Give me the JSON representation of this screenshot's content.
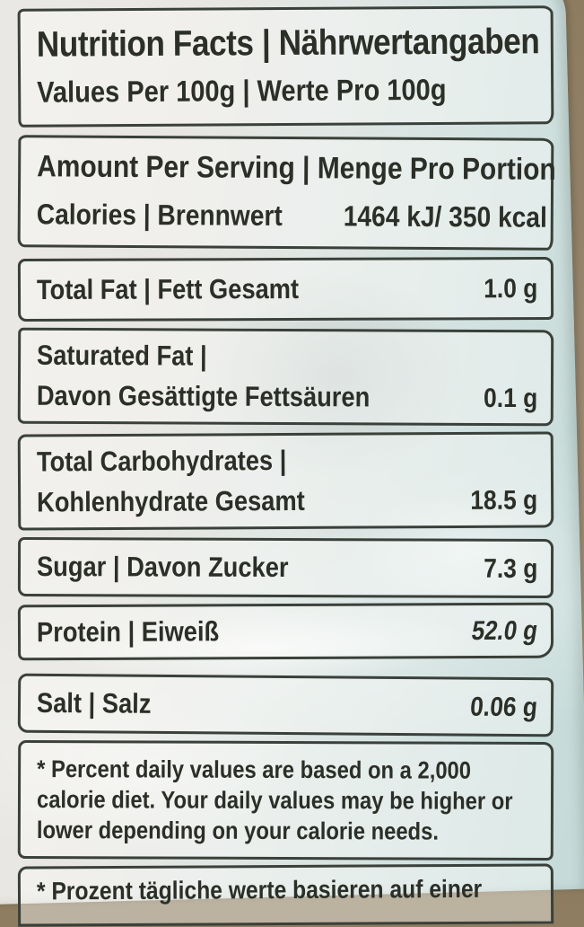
{
  "label": {
    "title": "Nutrition Facts | Nährwertangaben",
    "subtitle": "Values Per 100g | Werte Pro 100g",
    "serving_heading": "Amount Per Serving | Menge Pro Portion",
    "calories": {
      "label": "Calories | Brennwert",
      "value": "1464 kJ/ 350 kcal"
    },
    "rows": [
      {
        "line1": "Total Fat | Fett Gesamt",
        "value": "1.0 g"
      },
      {
        "line1": "Saturated Fat |",
        "line2": "Davon Gesättigte Fettsäuren",
        "value": "0.1 g"
      },
      {
        "line1": "Total Carbohydrates |",
        "line2": "Kohlenhydrate Gesamt",
        "value": "18.5 g"
      },
      {
        "line1": "Sugar | Davon Zucker",
        "value": "7.3 g"
      },
      {
        "line1": "Protein | Eiweiß",
        "value": "52.0 g"
      },
      {
        "line1": "Salt | Salz",
        "value": "0.06 g"
      }
    ],
    "footnote_en": "* Percent daily values are based on a 2,000 calorie diet. Your daily values may be higher or lower depending on your calorie needs.",
    "footnote_de": "* Prozent tägliche werte basieren auf einer"
  },
  "colors": {
    "photo_background": "#93826a",
    "package": "#e7e6e2",
    "package_tint": "#c9dddb",
    "ink": "#2b2f28",
    "border": "#3a403a"
  }
}
